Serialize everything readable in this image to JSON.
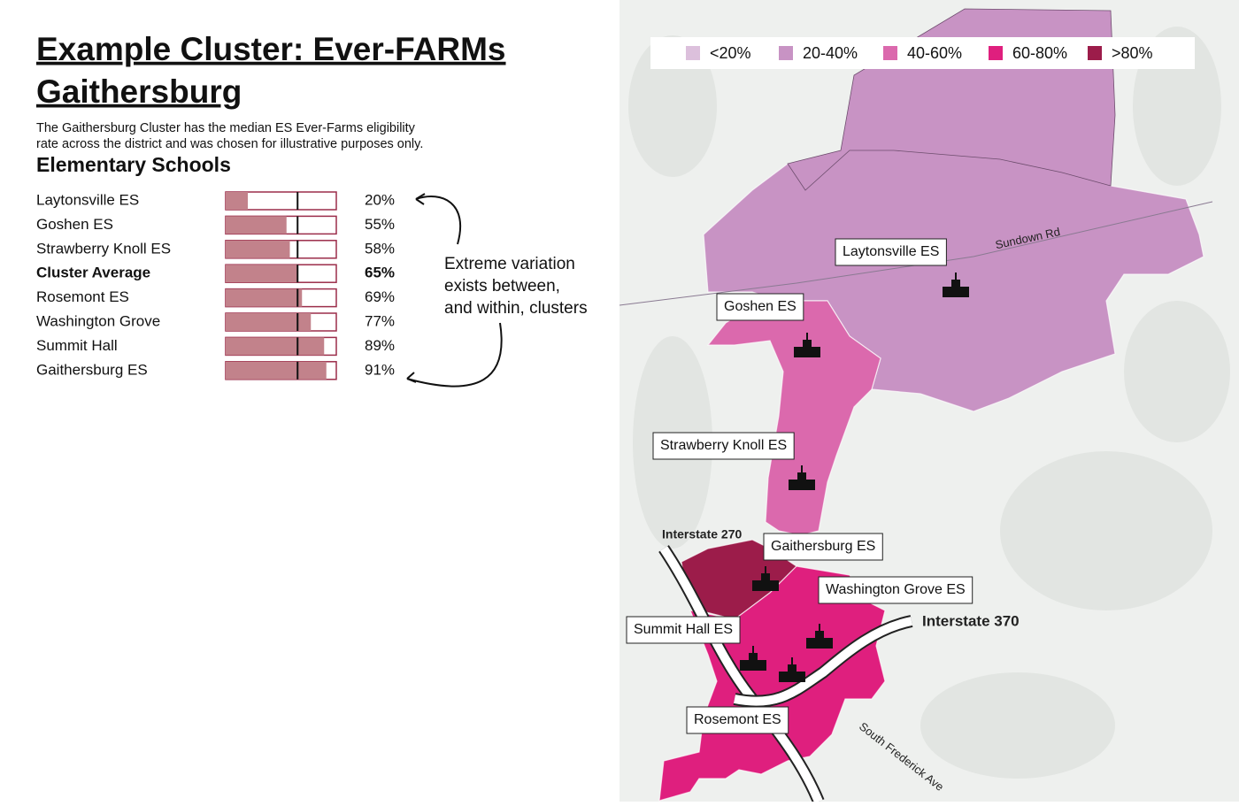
{
  "title_lines": [
    "Example Cluster: Ever-FARMs",
    "Gaithersburg"
  ],
  "description_lines": [
    "The Gaithersburg Cluster has the median ES Ever-Farms eligibility",
    "rate across the district and was chosen for illustrative purposes only."
  ],
  "chart_data": {
    "type": "bar",
    "title": "Elementary Schools",
    "categories": [
      "Laytonsville ES",
      "Goshen ES",
      "Strawberry Knoll ES",
      "Cluster Average",
      "Rosemont ES",
      "Washington Grove",
      "Summit Hall",
      "Gaithersburg ES"
    ],
    "values": [
      20,
      55,
      58,
      65,
      69,
      77,
      89,
      91
    ],
    "value_labels": [
      "20%",
      "55%",
      "58%",
      "65%",
      "69%",
      "77%",
      "89%",
      "91%"
    ],
    "xlim": [
      0,
      100
    ],
    "highlight_index": 3,
    "color": "#c2828b",
    "border_color": "#9b2d4a"
  },
  "annotation_lines": [
    "Extreme variation",
    "exists between,",
    "and within, clusters"
  ],
  "map": {
    "legend": [
      {
        "label": "<20%",
        "color": "#dcc0dc"
      },
      {
        "label": "20-40%",
        "color": "#c893c4"
      },
      {
        "label": "40-60%",
        "color": "#db69ad"
      },
      {
        "label": "60-80%",
        "color": "#df1f7e"
      },
      {
        "label": ">80%",
        "color": "#9c1c4a"
      }
    ],
    "schools": [
      "Laytonsville ES",
      "Goshen ES",
      "Strawberry Knoll ES",
      "Gaithersburg ES",
      "Washington Grove ES",
      "Summit Hall ES",
      "Rosemont ES"
    ],
    "roads": [
      "Sundown Rd",
      "Interstate 270",
      "Interstate 370",
      "South Frederick Ave"
    ]
  }
}
